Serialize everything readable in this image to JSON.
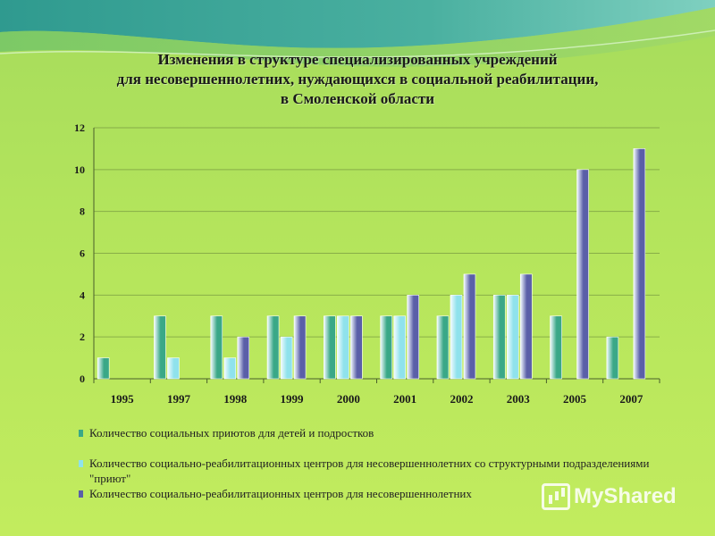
{
  "title": {
    "line1": "Изменения в структуре специализированных учреждений",
    "line2": "для несовершеннолетних, нуждающихся в социальной реабилитации,",
    "line3": "в Смоленской области"
  },
  "watermark": "MyShared",
  "colors": {
    "background": "#b3e45c",
    "series1": "#3aa887",
    "series2": "#8fe2ec",
    "series3": "#5a5fa8",
    "grid": "#6b8a3a"
  },
  "chart_data": {
    "type": "bar",
    "categories": [
      "1995",
      "1997",
      "1998",
      "1999",
      "2000",
      "2001",
      "2002",
      "2003",
      "2005",
      "2007"
    ],
    "series": [
      {
        "name": "Количество социальных приютов для детей и подростков",
        "values": [
          1,
          3,
          3,
          3,
          3,
          3,
          3,
          4,
          3,
          2
        ]
      },
      {
        "name": "Количество социально-реабилитационных центров для несовершеннолетних со структурными подразделениями \"приют\"",
        "values": [
          0,
          1,
          1,
          2,
          3,
          3,
          4,
          4,
          0,
          0
        ]
      },
      {
        "name": "Количество социально-реабилитационных центров для несовершеннолетних",
        "values": [
          0,
          0,
          2,
          3,
          3,
          4,
          5,
          5,
          10,
          11
        ]
      }
    ],
    "ylim": [
      0,
      12
    ],
    "yticks": [
      "0",
      "2",
      "4",
      "6",
      "8",
      "10",
      "12"
    ],
    "grid": true,
    "legend_position": "bottom",
    "legend_lines": [
      "Количество социальных приютов для детей и подростков",
      "Количество социально-реабилитационных центров для несовершеннолетних со структурными подразделениями \"приют\"",
      "Количество социально-реабилитационных центров для несовершеннолетних"
    ]
  }
}
